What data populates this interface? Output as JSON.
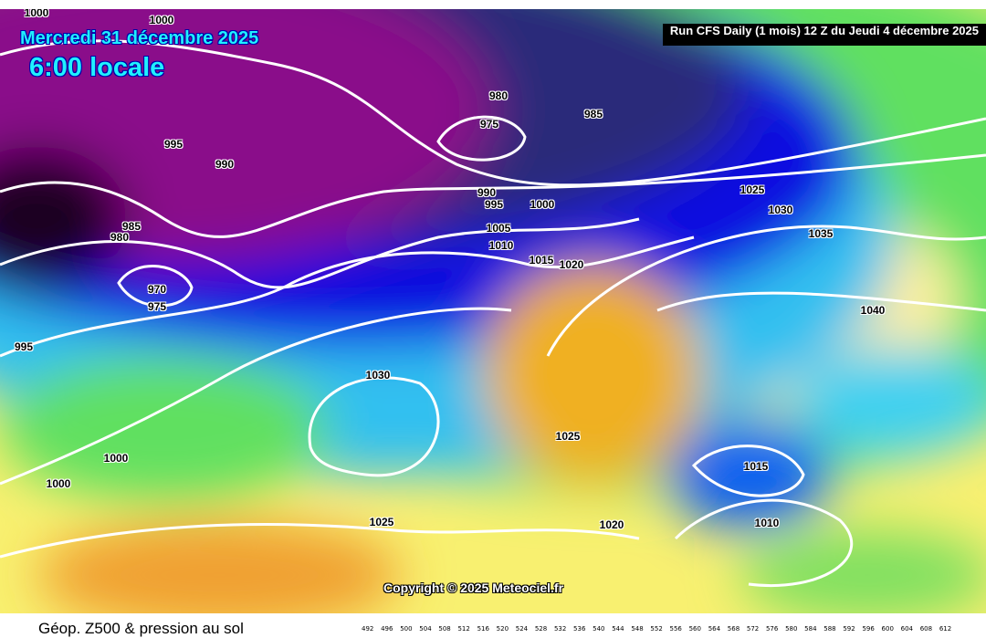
{
  "header": {
    "date": "Mercredi 31 décembre 2025",
    "local_time": "6:00 locale",
    "run_info": "Run CFS Daily (1 mois) 12 Z du Jeudi 4 décembre 2025"
  },
  "copyright": "Copyright © 2025 Meteociel.fr",
  "legend": {
    "title": "Géop. Z500 & pression au sol",
    "scale": [
      "492",
      "496",
      "500",
      "504",
      "508",
      "512",
      "516",
      "520",
      "524",
      "528",
      "532",
      "536",
      "540",
      "544",
      "548",
      "552",
      "556",
      "560",
      "564",
      "568",
      "572",
      "576",
      "580",
      "584",
      "588",
      "592",
      "596",
      "600",
      "604",
      "608",
      "612"
    ]
  },
  "isobar_labels": [
    "1000",
    "1000",
    "995",
    "990",
    "985",
    "980",
    "970",
    "975",
    "995",
    "980",
    "975",
    "985",
    "990",
    "995",
    "1000",
    "1005",
    "1010",
    "1015",
    "1020",
    "1025",
    "1030",
    "1035",
    "1040",
    "1030",
    "1025",
    "1000",
    "1000",
    "1015",
    "1010",
    "1025",
    "1020"
  ],
  "colors": {
    "low": "#8a0a8a",
    "deep": "#1a0520",
    "blue": "#1010e0",
    "cyan": "#30d0f0",
    "green": "#50e050",
    "yellow": "#f8f070",
    "orange": "#f0b020"
  }
}
